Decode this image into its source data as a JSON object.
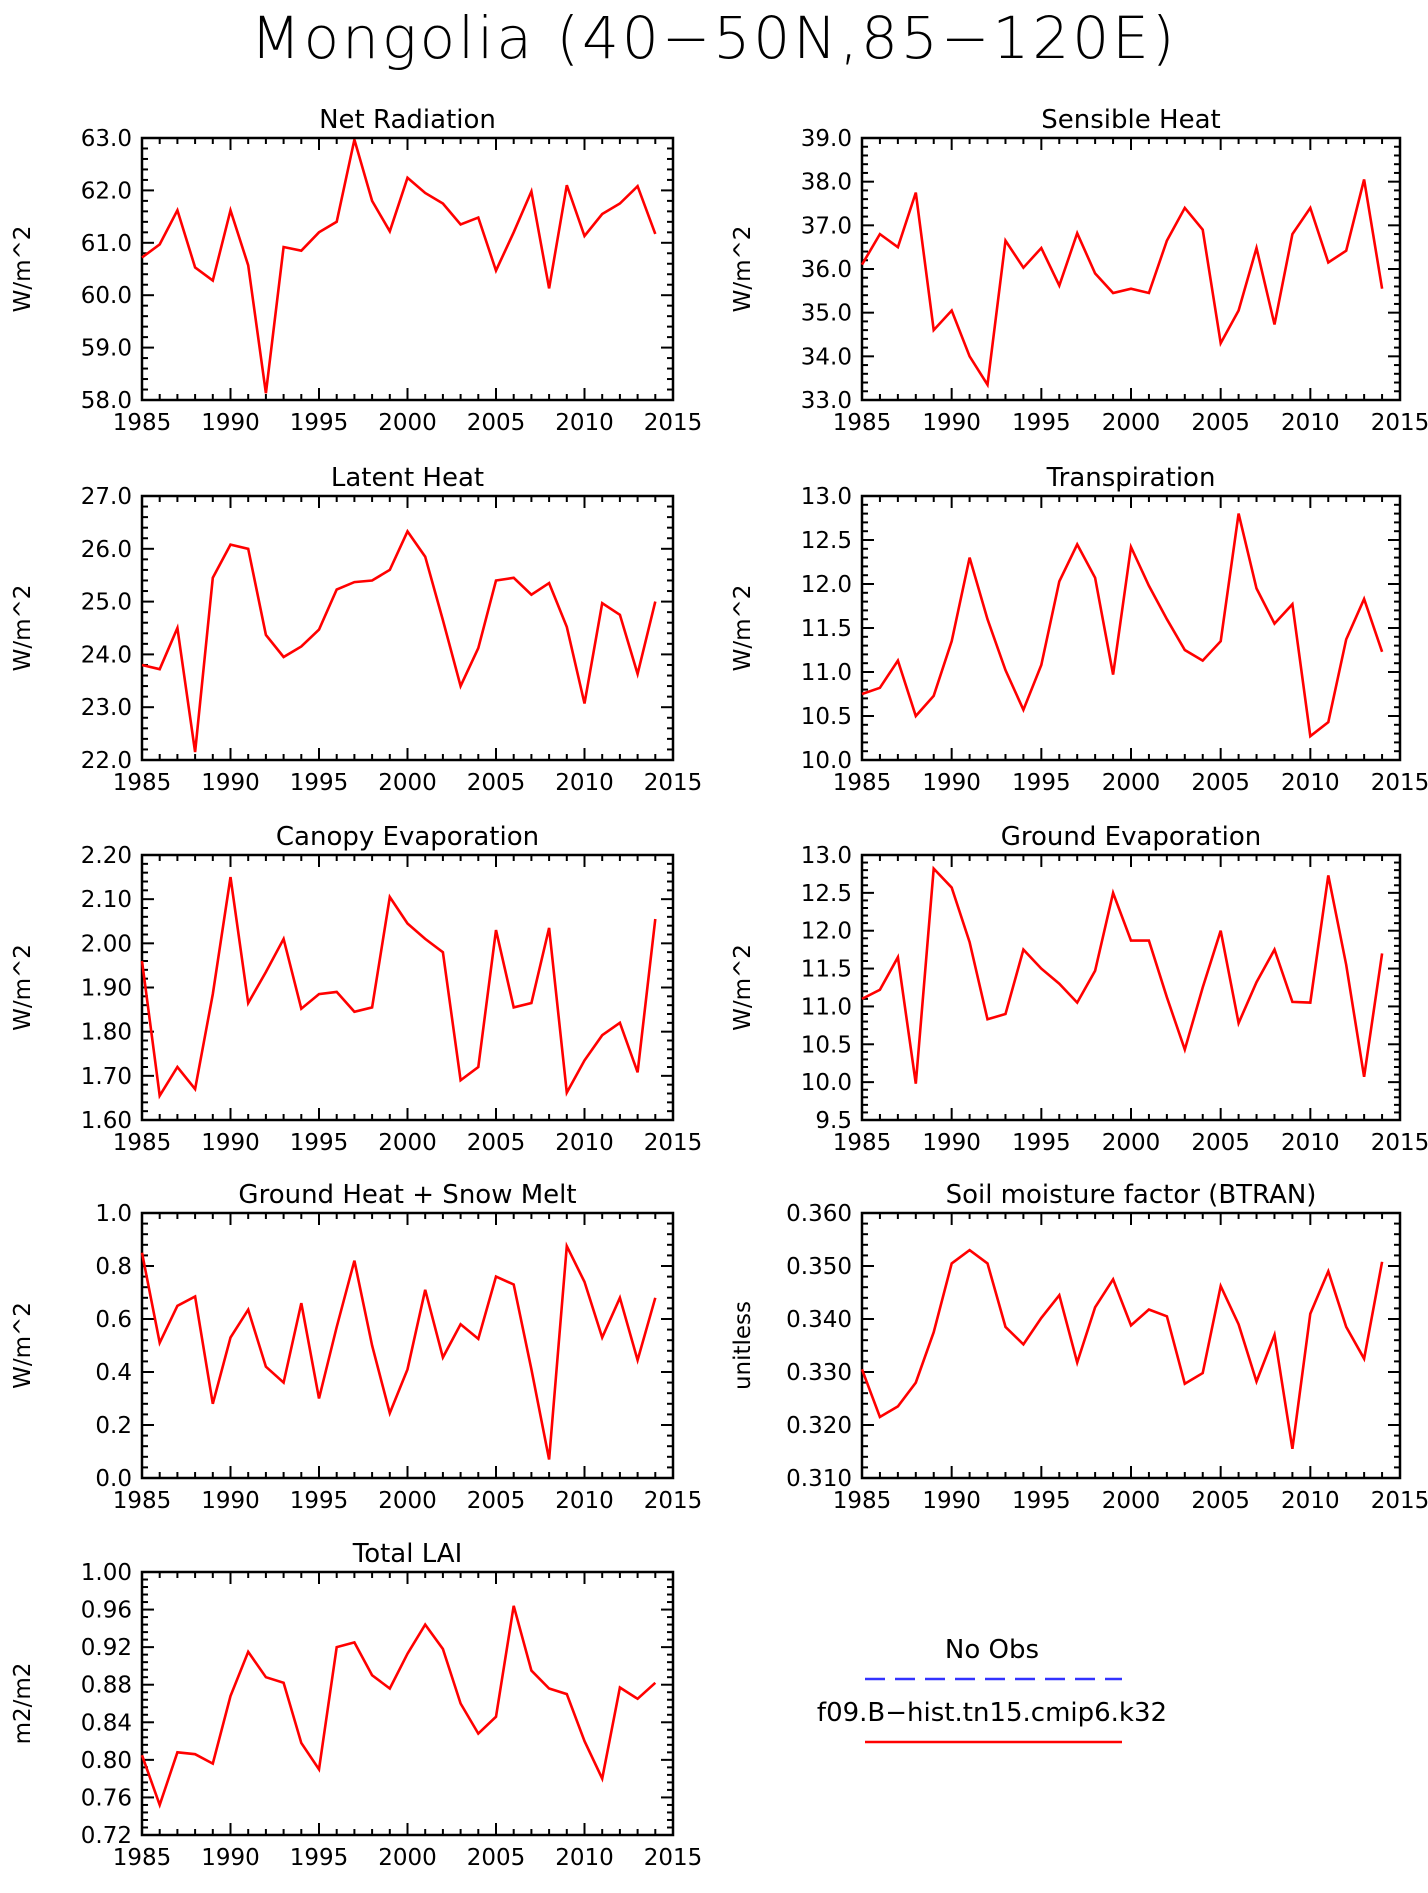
{
  "title": "Mongolia (40−50N,85−120E)",
  "colors": {
    "model": "#ff0000",
    "obs": "#3333ff",
    "axis": "#000000"
  },
  "legend": {
    "obs_label": "No Obs",
    "model_label": "f09.B−hist.tn15.cmip6.k32"
  },
  "chart_data": [
    {
      "type": "line",
      "title": "Net Radiation",
      "ylabel": "W/m^2",
      "xlim": [
        1985,
        2015
      ],
      "ylim": [
        58,
        63
      ],
      "x_ticks": [
        "1985",
        "1990",
        "1995",
        "2000",
        "2005",
        "2010",
        "2015"
      ],
      "y_ticks": [
        "58.0",
        "59.0",
        "60.0",
        "61.0",
        "62.0",
        "63.0"
      ],
      "x_start": 1985,
      "series": [
        {
          "values": [
            60.72,
            60.97,
            61.62,
            60.53,
            60.28,
            61.62,
            60.57,
            58.13,
            60.92,
            60.85,
            61.2,
            61.4,
            62.97,
            61.8,
            61.22,
            62.24,
            61.95,
            61.75,
            61.35,
            61.48,
            60.47,
            61.2,
            61.98,
            60.13,
            62.1,
            61.13,
            61.55,
            61.75,
            62.08,
            61.17
          ]
        }
      ]
    },
    {
      "type": "line",
      "title": "Sensible Heat",
      "ylabel": "W/m^2",
      "xlim": [
        1985,
        2015
      ],
      "ylim": [
        33,
        39
      ],
      "x_ticks": [
        "1985",
        "1990",
        "1995",
        "2000",
        "2005",
        "2010",
        "2015"
      ],
      "y_ticks": [
        "33.0",
        "34.0",
        "35.0",
        "36.0",
        "37.0",
        "38.0",
        "39.0"
      ],
      "x_start": 1985,
      "series": [
        {
          "values": [
            36.1,
            36.8,
            36.5,
            37.75,
            34.6,
            35.05,
            34.0,
            33.35,
            36.65,
            36.03,
            36.48,
            35.62,
            36.82,
            35.9,
            35.45,
            35.55,
            35.45,
            36.65,
            37.4,
            36.9,
            34.3,
            35.05,
            36.48,
            34.73,
            36.8,
            37.4,
            36.15,
            36.42,
            38.05,
            35.55
          ]
        }
      ]
    },
    {
      "type": "line",
      "title": "Latent Heat",
      "ylabel": "W/m^2",
      "xlim": [
        1985,
        2015
      ],
      "ylim": [
        22,
        27
      ],
      "x_ticks": [
        "1985",
        "1990",
        "1995",
        "2000",
        "2005",
        "2010",
        "2015"
      ],
      "y_ticks": [
        "22.0",
        "23.0",
        "24.0",
        "25.0",
        "26.0",
        "27.0"
      ],
      "x_start": 1985,
      "series": [
        {
          "values": [
            23.8,
            23.72,
            24.5,
            22.15,
            25.45,
            26.08,
            26.0,
            24.37,
            23.95,
            24.15,
            24.47,
            25.23,
            25.37,
            25.4,
            25.6,
            26.33,
            25.85,
            24.65,
            23.4,
            24.12,
            25.4,
            25.45,
            25.13,
            25.35,
            24.52,
            23.07,
            24.97,
            24.75,
            23.63,
            25.0
          ]
        }
      ]
    },
    {
      "type": "line",
      "title": "Transpiration",
      "ylabel": "W/m^2",
      "xlim": [
        1985,
        2015
      ],
      "ylim": [
        10,
        13
      ],
      "x_ticks": [
        "1985",
        "1990",
        "1995",
        "2000",
        "2005",
        "2010",
        "2015"
      ],
      "y_ticks": [
        "10.0",
        "10.5",
        "11.0",
        "11.5",
        "12.0",
        "12.5",
        "13.0"
      ],
      "x_start": 1985,
      "series": [
        {
          "values": [
            10.75,
            10.82,
            11.13,
            10.5,
            10.73,
            11.35,
            12.3,
            11.6,
            11.02,
            10.57,
            11.08,
            12.03,
            12.45,
            12.07,
            10.97,
            12.42,
            11.98,
            11.6,
            11.25,
            11.13,
            11.35,
            12.8,
            11.95,
            11.55,
            11.77,
            10.27,
            10.43,
            11.37,
            11.83,
            11.23
          ]
        }
      ]
    },
    {
      "type": "line",
      "title": "Canopy Evaporation",
      "ylabel": "W/m^2",
      "xlim": [
        1985,
        2015
      ],
      "ylim": [
        1.6,
        2.2
      ],
      "x_ticks": [
        "1985",
        "1990",
        "1995",
        "2000",
        "2005",
        "2010",
        "2015"
      ],
      "y_ticks": [
        "1.60",
        "1.70",
        "1.80",
        "1.90",
        "2.00",
        "2.10",
        "2.20"
      ],
      "x_start": 1985,
      "series": [
        {
          "values": [
            1.96,
            1.655,
            1.72,
            1.67,
            1.885,
            2.15,
            1.865,
            1.935,
            2.01,
            1.852,
            1.885,
            1.89,
            1.845,
            1.855,
            2.105,
            2.045,
            2.01,
            1.98,
            1.69,
            1.72,
            2.03,
            1.855,
            1.865,
            2.035,
            1.662,
            1.735,
            1.792,
            1.82,
            1.708,
            2.055
          ]
        }
      ]
    },
    {
      "type": "line",
      "title": "Ground Evaporation",
      "ylabel": "W/m^2",
      "xlim": [
        1985,
        2015
      ],
      "ylim": [
        9.5,
        13
      ],
      "x_ticks": [
        "1985",
        "1990",
        "1995",
        "2000",
        "2005",
        "2010",
        "2015"
      ],
      "y_ticks": [
        "9.5",
        "10.0",
        "10.5",
        "11.0",
        "11.5",
        "12.0",
        "12.5",
        "13.0"
      ],
      "x_start": 1985,
      "series": [
        {
          "values": [
            11.1,
            11.22,
            11.65,
            9.98,
            12.82,
            12.57,
            11.85,
            10.83,
            10.9,
            11.75,
            11.5,
            11.3,
            11.05,
            11.47,
            12.5,
            11.87,
            11.87,
            11.12,
            10.43,
            11.25,
            12.0,
            10.78,
            11.32,
            11.75,
            11.06,
            11.05,
            12.73,
            11.55,
            10.07,
            11.7
          ]
        }
      ]
    },
    {
      "type": "line",
      "title": "Ground Heat + Snow Melt",
      "ylabel": "W/m^2",
      "xlim": [
        1985,
        2015
      ],
      "ylim": [
        0,
        1
      ],
      "x_ticks": [
        "1985",
        "1990",
        "1995",
        "2000",
        "2005",
        "2010",
        "2015"
      ],
      "y_ticks": [
        "0.0",
        "0.2",
        "0.4",
        "0.6",
        "0.8",
        "1.0"
      ],
      "x_start": 1985,
      "series": [
        {
          "values": [
            0.85,
            0.51,
            0.65,
            0.685,
            0.28,
            0.53,
            0.635,
            0.42,
            0.36,
            0.66,
            0.3,
            0.57,
            0.82,
            0.5,
            0.245,
            0.41,
            0.71,
            0.455,
            0.58,
            0.525,
            0.76,
            0.73,
            0.41,
            0.07,
            0.875,
            0.74,
            0.53,
            0.68,
            0.445,
            0.68
          ]
        }
      ]
    },
    {
      "type": "line",
      "title": "Soil moisture factor (BTRAN)",
      "ylabel": "unitless",
      "xlim": [
        1985,
        2015
      ],
      "ylim": [
        0.31,
        0.36
      ],
      "x_ticks": [
        "1985",
        "1990",
        "1995",
        "2000",
        "2005",
        "2010",
        "2015"
      ],
      "y_ticks": [
        "0.310",
        "0.320",
        "0.330",
        "0.340",
        "0.350",
        "0.360"
      ],
      "x_start": 1985,
      "series": [
        {
          "values": [
            0.3305,
            0.3215,
            0.3235,
            0.328,
            0.3375,
            0.3505,
            0.353,
            0.3505,
            0.3385,
            0.3352,
            0.3402,
            0.3445,
            0.3318,
            0.3422,
            0.3475,
            0.3388,
            0.3418,
            0.3405,
            0.3278,
            0.3298,
            0.3462,
            0.339,
            0.3282,
            0.337,
            0.3155,
            0.341,
            0.349,
            0.3385,
            0.3325,
            0.3508
          ]
        }
      ]
    },
    {
      "type": "line",
      "title": "Total LAI",
      "ylabel": "m2/m2",
      "xlim": [
        1985,
        2015
      ],
      "ylim": [
        0.72,
        1.0
      ],
      "x_ticks": [
        "1985",
        "1990",
        "1995",
        "2000",
        "2005",
        "2010",
        "2015"
      ],
      "y_ticks": [
        "0.72",
        "0.76",
        "0.80",
        "0.84",
        "0.88",
        "0.92",
        "0.96",
        "1.00"
      ],
      "x_start": 1985,
      "series": [
        {
          "values": [
            0.805,
            0.752,
            0.808,
            0.806,
            0.796,
            0.868,
            0.915,
            0.888,
            0.882,
            0.818,
            0.79,
            0.92,
            0.925,
            0.89,
            0.876,
            0.913,
            0.944,
            0.918,
            0.86,
            0.828,
            0.846,
            0.964,
            0.895,
            0.876,
            0.87,
            0.82,
            0.78,
            0.877,
            0.865,
            0.882
          ]
        }
      ]
    }
  ]
}
